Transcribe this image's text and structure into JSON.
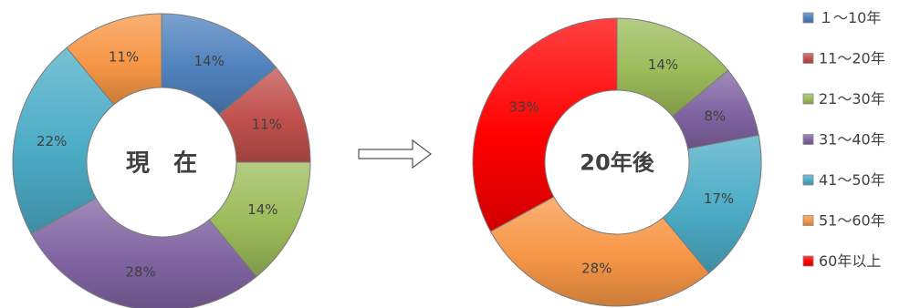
{
  "legend": [
    {
      "label": "１～10年",
      "color": "#4f81bd"
    },
    {
      "label": "11～20年",
      "color": "#c0504d"
    },
    {
      "label": "21～30年",
      "color": "#9bbb59"
    },
    {
      "label": "31～40年",
      "color": "#8064a2"
    },
    {
      "label": "41～50年",
      "color": "#4bacc6"
    },
    {
      "label": "51～60年",
      "color": "#f79646"
    },
    {
      "label": "60年以上",
      "color": "#ff0000"
    }
  ],
  "chart_data": [
    {
      "type": "pie",
      "center_label": "現　在",
      "categories": [
        "１～10年",
        "11～20年",
        "21～30年",
        "31～40年",
        "41～50年",
        "51～60年"
      ],
      "values": [
        14,
        11,
        14,
        28,
        22,
        11
      ],
      "labels": [
        "14%",
        "11%",
        "14%",
        "28%",
        "22%",
        "11%"
      ],
      "colors": [
        "#4f81bd",
        "#c0504d",
        "#9bbb59",
        "#8064a2",
        "#4bacc6",
        "#f79646"
      ]
    },
    {
      "type": "pie",
      "center_label": "20年後",
      "categories": [
        "21～30年",
        "31～40年",
        "41～50年",
        "51～60年",
        "60年以上"
      ],
      "values": [
        14,
        8,
        17,
        28,
        33
      ],
      "labels": [
        "14%",
        "8%",
        "17%",
        "28%",
        "33%"
      ],
      "colors": [
        "#9bbb59",
        "#8064a2",
        "#4bacc6",
        "#f79646",
        "#ff0000"
      ]
    }
  ]
}
